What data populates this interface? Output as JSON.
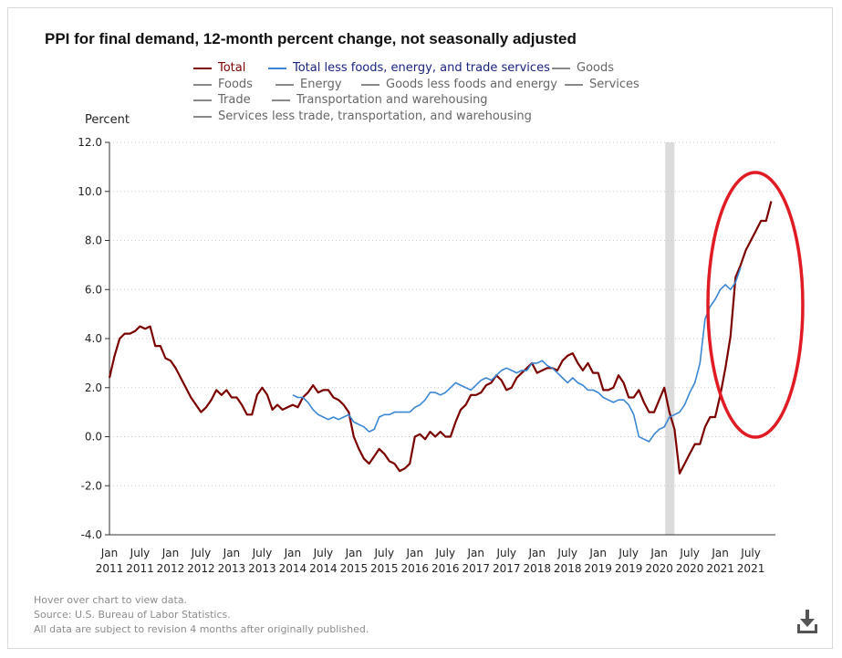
{
  "title": "PPI for final demand, 12-month percent change, not seasonally adjusted",
  "unit_label": "Percent",
  "legend": [
    {
      "label": "Total",
      "color": "#7b0000"
    },
    {
      "label": "Total less foods, energy, and trade services",
      "color": "#3a86d4"
    },
    {
      "label": "Goods",
      "color": "#888888"
    },
    {
      "label": "Foods",
      "color": "#888888"
    },
    {
      "label": "Energy",
      "color": "#888888"
    },
    {
      "label": "Goods less foods and energy",
      "color": "#888888"
    },
    {
      "label": "Services",
      "color": "#888888"
    },
    {
      "label": "Trade",
      "color": "#888888"
    },
    {
      "label": "Transportation and warehousing",
      "color": "#888888"
    },
    {
      "label": "Services less trade, transportation, and warehousing",
      "color": "#888888"
    }
  ],
  "footer": {
    "hover": "Hover over chart to view data.",
    "source": "Source: U.S. Bureau of Labor Statistics.",
    "revision": "All data are subject to revision 4 months after originally published."
  },
  "icons": {
    "download": "download-icon"
  },
  "chart_data": {
    "type": "line",
    "title": "PPI for final demand, 12-month percent change, not seasonally adjusted",
    "ylabel": "Percent",
    "ylim": [
      -4.0,
      12.0
    ],
    "yticks": [
      "12.0",
      "10.0",
      "8.0",
      "6.0",
      "4.0",
      "2.0",
      "0.0",
      "-2.0",
      "-4.0"
    ],
    "x_start": "2011-01",
    "x_end": "2021-08",
    "xtick_labels": [
      {
        "month": "Jan",
        "year": "2011"
      },
      {
        "month": "July",
        "year": "2011"
      },
      {
        "month": "Jan",
        "year": "2012"
      },
      {
        "month": "July",
        "year": "2012"
      },
      {
        "month": "Jan",
        "year": "2013"
      },
      {
        "month": "July",
        "year": "2013"
      },
      {
        "month": "Jan",
        "year": "2014"
      },
      {
        "month": "July",
        "year": "2014"
      },
      {
        "month": "Jan",
        "year": "2015"
      },
      {
        "month": "July",
        "year": "2015"
      },
      {
        "month": "Jan",
        "year": "2016"
      },
      {
        "month": "July",
        "year": "2016"
      },
      {
        "month": "Jan",
        "year": "2017"
      },
      {
        "month": "July",
        "year": "2017"
      },
      {
        "month": "Jan",
        "year": "2018"
      },
      {
        "month": "July",
        "year": "2018"
      },
      {
        "month": "Jan",
        "year": "2019"
      },
      {
        "month": "July",
        "year": "2019"
      },
      {
        "month": "Jan",
        "year": "2020"
      },
      {
        "month": "July",
        "year": "2020"
      },
      {
        "month": "Jan",
        "year": "2021"
      },
      {
        "month": "July",
        "year": "2021"
      }
    ],
    "grid": "horizontal dotted",
    "legend_position": "top",
    "recession_shading": {
      "start": "2020-02",
      "end": "2020-04"
    },
    "annotation": "red ellipse highlighting 2021 surge",
    "series": [
      {
        "name": "Total",
        "color": "#7b0000",
        "start": "2011-01",
        "values": [
          2.4,
          3.3,
          4.0,
          4.2,
          4.2,
          4.3,
          4.5,
          4.4,
          4.5,
          3.7,
          3.7,
          3.2,
          3.1,
          2.8,
          2.4,
          2.0,
          1.6,
          1.3,
          1.0,
          1.2,
          1.5,
          1.9,
          1.7,
          1.9,
          1.6,
          1.6,
          1.3,
          0.9,
          0.9,
          1.7,
          2.0,
          1.7,
          1.1,
          1.3,
          1.1,
          1.2,
          1.3,
          1.2,
          1.6,
          1.8,
          2.1,
          1.8,
          1.9,
          1.9,
          1.6,
          1.5,
          1.3,
          1.0,
          0.0,
          -0.5,
          -0.9,
          -1.1,
          -0.8,
          -0.5,
          -0.7,
          -1.0,
          -1.1,
          -1.4,
          -1.3,
          -1.1,
          0.0,
          0.1,
          -0.1,
          0.2,
          0.0,
          0.2,
          0.0,
          0.0,
          0.6,
          1.1,
          1.3,
          1.7,
          1.7,
          1.8,
          2.1,
          2.2,
          2.5,
          2.3,
          1.9,
          2.0,
          2.4,
          2.6,
          2.8,
          3.0,
          2.6,
          2.7,
          2.8,
          2.8,
          2.7,
          3.1,
          3.3,
          3.4,
          3.0,
          2.7,
          3.0,
          2.6,
          2.6,
          1.9,
          1.9,
          2.0,
          2.5,
          2.2,
          1.6,
          1.6,
          1.9,
          1.4,
          1.0,
          1.0,
          1.5,
          2.0,
          1.0,
          0.3,
          -1.5,
          -1.1,
          -0.7,
          -0.3,
          -0.3,
          0.4,
          0.8,
          0.8,
          1.7,
          2.8,
          4.1,
          6.5,
          7.0,
          7.6,
          8.0,
          8.4,
          8.8,
          8.8,
          9.6
        ]
      },
      {
        "name": "Total less foods, energy, and trade services",
        "color": "#3a86d4",
        "start": "2014-01",
        "values": [
          1.7,
          1.6,
          1.6,
          1.4,
          1.1,
          0.9,
          0.8,
          0.7,
          0.8,
          0.7,
          0.8,
          0.9,
          0.6,
          0.5,
          0.4,
          0.2,
          0.3,
          0.8,
          0.9,
          0.9,
          1.0,
          1.0,
          1.0,
          1.0,
          1.2,
          1.3,
          1.5,
          1.8,
          1.8,
          1.7,
          1.8,
          2.0,
          2.2,
          2.1,
          2.0,
          1.9,
          2.1,
          2.3,
          2.4,
          2.3,
          2.5,
          2.7,
          2.8,
          2.7,
          2.6,
          2.7,
          2.7,
          3.0,
          3.0,
          3.1,
          2.9,
          2.8,
          2.6,
          2.4,
          2.2,
          2.4,
          2.2,
          2.1,
          1.9,
          1.9,
          1.8,
          1.6,
          1.5,
          1.4,
          1.5,
          1.5,
          1.3,
          0.9,
          0.0,
          -0.1,
          -0.2,
          0.1,
          0.3,
          0.4,
          0.8,
          0.9,
          1.0,
          1.3,
          1.8,
          2.2,
          3.0,
          4.8,
          5.3,
          5.6,
          6.0,
          6.2,
          6.0,
          6.3,
          6.9
        ]
      }
    ]
  }
}
